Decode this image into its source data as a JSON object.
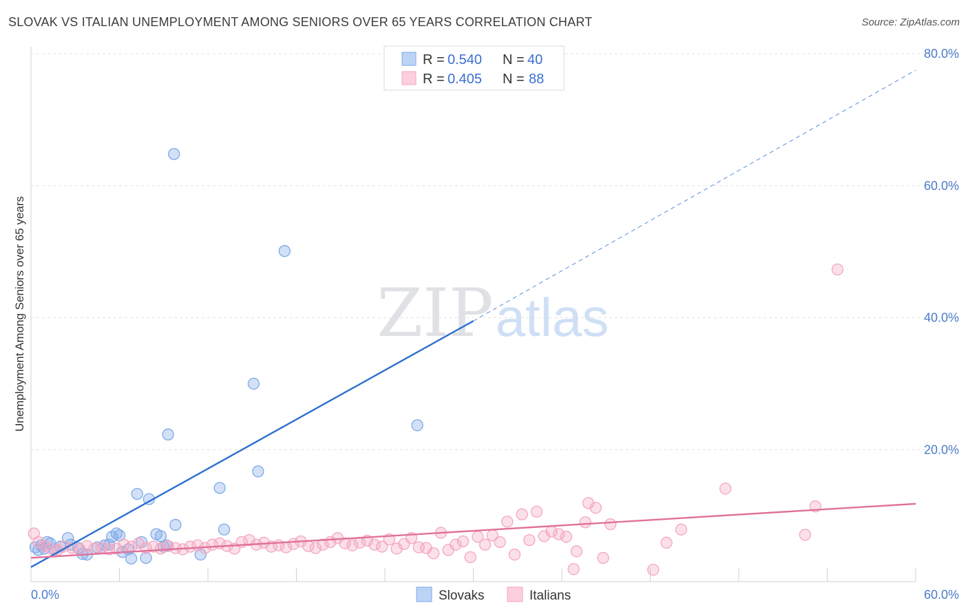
{
  "header": {
    "title": "SLOVAK VS ITALIAN UNEMPLOYMENT AMONG SENIORS OVER 65 YEARS CORRELATION CHART",
    "source": "Source: ZipAtlas.com"
  },
  "watermark": {
    "zip": "ZIP",
    "atlas": "atlas"
  },
  "legend": {
    "r_label": "R = ",
    "n_label": "N = ",
    "items": [
      {
        "r": "0.540",
        "n": "40"
      },
      {
        "r": "0.405",
        "n": "88"
      }
    ]
  },
  "chart_data": {
    "type": "scatter",
    "xlabel": "",
    "ylabel": "Unemployment Among Seniors over 65 years",
    "xlim": [
      0,
      60
    ],
    "ylim": [
      0,
      80
    ],
    "x_tick_labels": [
      "0.0%",
      "60.0%"
    ],
    "y_tick_labels": [
      "20.0%",
      "40.0%",
      "60.0%",
      "80.0%"
    ],
    "y_ticks": [
      20,
      40,
      60,
      80
    ],
    "grid": true,
    "legend_position": "top-center",
    "series": [
      {
        "name": "Slovaks",
        "color": "#7ea8e8",
        "line_color": "#2c6fd1",
        "trend": {
          "x": [
            0,
            30
          ],
          "y": [
            2.2,
            39.5
          ],
          "extend_to_x": 60,
          "extend_to_y": 77.5
        },
        "points": [
          [
            0.3,
            5.2
          ],
          [
            0.5,
            4.8
          ],
          [
            0.7,
            5.5
          ],
          [
            0.9,
            5.0
          ],
          [
            1.1,
            6.0
          ],
          [
            1.3,
            5.8
          ],
          [
            1.6,
            4.9
          ],
          [
            2.0,
            5.3
          ],
          [
            2.5,
            6.6
          ],
          [
            2.7,
            5.6
          ],
          [
            3.2,
            5.1
          ],
          [
            3.5,
            4.2
          ],
          [
            3.8,
            4.1
          ],
          [
            4.5,
            5.2
          ],
          [
            5.0,
            5.5
          ],
          [
            5.3,
            5.6
          ],
          [
            5.5,
            6.8
          ],
          [
            5.8,
            7.3
          ],
          [
            6.0,
            7.0
          ],
          [
            6.2,
            4.5
          ],
          [
            6.6,
            4.9
          ],
          [
            6.8,
            3.5
          ],
          [
            7.2,
            13.3
          ],
          [
            7.5,
            6.0
          ],
          [
            7.8,
            3.6
          ],
          [
            8.0,
            12.5
          ],
          [
            8.5,
            7.2
          ],
          [
            8.8,
            6.9
          ],
          [
            9.0,
            5.3
          ],
          [
            9.2,
            5.5
          ],
          [
            9.3,
            22.3
          ],
          [
            9.7,
            64.8
          ],
          [
            9.8,
            8.6
          ],
          [
            11.5,
            4.1
          ],
          [
            12.8,
            14.2
          ],
          [
            13.1,
            7.9
          ],
          [
            15.1,
            30.0
          ],
          [
            15.4,
            16.7
          ],
          [
            17.2,
            50.1
          ],
          [
            26.2,
            23.7
          ]
        ]
      },
      {
        "name": "Italians",
        "color": "#f4a6bf",
        "line_color": "#e0709a",
        "trend": {
          "x": [
            0,
            60
          ],
          "y": [
            3.6,
            11.8
          ]
        },
        "points": [
          [
            0.2,
            7.3
          ],
          [
            0.5,
            6.0
          ],
          [
            0.9,
            5.4
          ],
          [
            1.3,
            5.0
          ],
          [
            1.8,
            4.8
          ],
          [
            2.2,
            5.3
          ],
          [
            2.8,
            5.1
          ],
          [
            3.3,
            4.9
          ],
          [
            3.8,
            5.4
          ],
          [
            4.3,
            5.0
          ],
          [
            4.8,
            5.2
          ],
          [
            5.3,
            4.9
          ],
          [
            5.8,
            5.0
          ],
          [
            6.3,
            5.6
          ],
          [
            6.8,
            5.3
          ],
          [
            7.3,
            5.8
          ],
          [
            7.8,
            5.1
          ],
          [
            8.3,
            5.3
          ],
          [
            8.8,
            5.0
          ],
          [
            9.3,
            5.4
          ],
          [
            9.8,
            5.1
          ],
          [
            10.3,
            4.9
          ],
          [
            10.8,
            5.3
          ],
          [
            11.3,
            5.5
          ],
          [
            11.8,
            5.1
          ],
          [
            12.3,
            5.6
          ],
          [
            12.8,
            5.8
          ],
          [
            13.3,
            5.4
          ],
          [
            13.8,
            5.0
          ],
          [
            14.3,
            6.0
          ],
          [
            14.8,
            6.3
          ],
          [
            15.3,
            5.6
          ],
          [
            15.8,
            5.9
          ],
          [
            16.3,
            5.3
          ],
          [
            16.8,
            5.5
          ],
          [
            17.3,
            5.2
          ],
          [
            17.8,
            5.7
          ],
          [
            18.3,
            6.1
          ],
          [
            18.8,
            5.4
          ],
          [
            19.3,
            5.1
          ],
          [
            19.8,
            5.6
          ],
          [
            20.3,
            6.0
          ],
          [
            20.8,
            6.6
          ],
          [
            21.3,
            5.8
          ],
          [
            21.8,
            5.5
          ],
          [
            22.3,
            5.9
          ],
          [
            22.8,
            6.2
          ],
          [
            23.3,
            5.6
          ],
          [
            23.8,
            5.3
          ],
          [
            24.3,
            6.4
          ],
          [
            24.8,
            5.0
          ],
          [
            25.3,
            5.7
          ],
          [
            25.8,
            6.6
          ],
          [
            26.3,
            5.2
          ],
          [
            26.8,
            5.1
          ],
          [
            27.3,
            4.3
          ],
          [
            27.8,
            7.4
          ],
          [
            28.3,
            4.8
          ],
          [
            28.8,
            5.6
          ],
          [
            29.3,
            6.1
          ],
          [
            29.8,
            3.7
          ],
          [
            30.3,
            6.8
          ],
          [
            30.8,
            5.6
          ],
          [
            31.3,
            7.0
          ],
          [
            31.8,
            6.0
          ],
          [
            32.3,
            9.1
          ],
          [
            32.8,
            4.1
          ],
          [
            33.3,
            10.2
          ],
          [
            33.8,
            6.3
          ],
          [
            34.3,
            10.6
          ],
          [
            34.8,
            6.9
          ],
          [
            35.3,
            7.6
          ],
          [
            35.8,
            7.2
          ],
          [
            36.3,
            6.8
          ],
          [
            36.8,
            1.9
          ],
          [
            37.0,
            4.6
          ],
          [
            37.6,
            9.0
          ],
          [
            37.8,
            11.9
          ],
          [
            38.3,
            11.2
          ],
          [
            38.8,
            3.6
          ],
          [
            39.3,
            8.7
          ],
          [
            42.2,
            1.8
          ],
          [
            43.1,
            5.9
          ],
          [
            44.1,
            7.9
          ],
          [
            47.1,
            14.1
          ],
          [
            52.5,
            7.1
          ],
          [
            53.2,
            11.4
          ],
          [
            54.7,
            47.3
          ]
        ]
      }
    ]
  }
}
